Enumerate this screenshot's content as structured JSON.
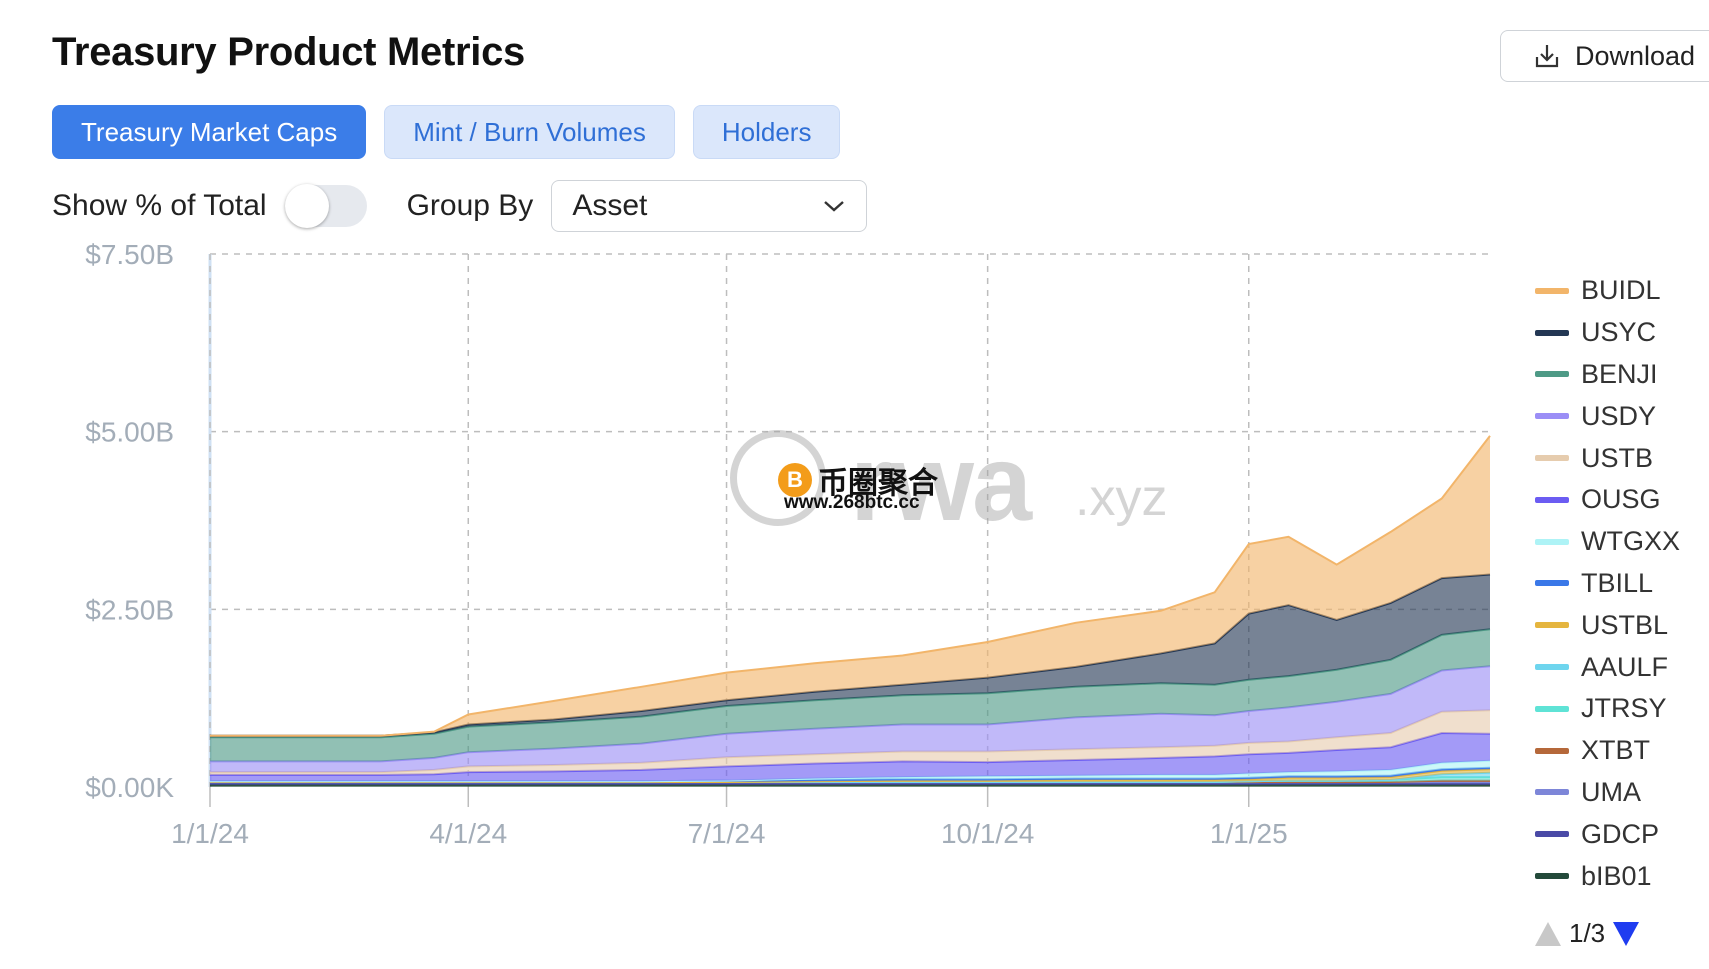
{
  "page": {
    "title": "Treasury Product Metrics",
    "download_label": "Download",
    "tabs": [
      "Treasury Market Caps",
      "Mint / Burn Volumes",
      "Holders"
    ],
    "active_tab": 0,
    "show_pct_label": "Show % of Total",
    "show_pct_enabled": false,
    "group_by_label": "Group By",
    "group_by_value": "Asset",
    "pager": "1/3",
    "watermark_main": "rwa",
    "watermark_sub": ".xyz",
    "watermark2_cn": "币圈聚合",
    "watermark2_url": "www.268btc.cc",
    "watermark2_coin": "B"
  },
  "chart_data": {
    "type": "area",
    "stacked": true,
    "x": [
      "2024-01-01",
      "2024-02-01",
      "2024-03-01",
      "2024-03-20",
      "2024-04-01",
      "2024-05-01",
      "2024-06-01",
      "2024-07-01",
      "2024-08-01",
      "2024-09-01",
      "2024-10-01",
      "2024-11-01",
      "2024-12-01",
      "2024-12-20",
      "2025-01-01",
      "2025-01-15",
      "2025-02-01",
      "2025-02-20",
      "2025-03-10",
      "2025-03-27"
    ],
    "x_ticks": [
      "1/1/24",
      "4/1/24",
      "7/1/24",
      "10/1/24",
      "1/1/25"
    ],
    "x_tick_dates": [
      "2024-01-01",
      "2024-04-01",
      "2024-07-01",
      "2024-10-01",
      "2025-01-01"
    ],
    "y_ticks": [
      "$0.00K",
      "$2.50B",
      "$5.00B",
      "$7.50B"
    ],
    "y_tick_values": [
      0,
      2.5,
      5.0,
      7.5
    ],
    "ylim": [
      0,
      7.5
    ],
    "y_unit": "$B",
    "grid": true,
    "legend_position": "right",
    "series": [
      {
        "name": "bIB01",
        "color": "#234a3a",
        "values": [
          0.03,
          0.03,
          0.03,
          0.03,
          0.03,
          0.03,
          0.03,
          0.03,
          0.03,
          0.03,
          0.03,
          0.03,
          0.03,
          0.03,
          0.03,
          0.03,
          0.03,
          0.03,
          0.03,
          0.03
        ]
      },
      {
        "name": "GDCP",
        "color": "#4a4aa6",
        "values": [
          0.02,
          0.02,
          0.02,
          0.02,
          0.02,
          0.02,
          0.02,
          0.02,
          0.02,
          0.02,
          0.02,
          0.02,
          0.02,
          0.02,
          0.02,
          0.02,
          0.02,
          0.02,
          0.02,
          0.02
        ]
      },
      {
        "name": "UMA",
        "color": "#7d86d8",
        "values": [
          0.02,
          0.02,
          0.02,
          0.02,
          0.02,
          0.02,
          0.02,
          0.02,
          0.02,
          0.02,
          0.02,
          0.02,
          0.02,
          0.02,
          0.02,
          0.02,
          0.02,
          0.02,
          0.02,
          0.02
        ]
      },
      {
        "name": "XTBT",
        "color": "#b5683a",
        "values": [
          0,
          0,
          0,
          0,
          0,
          0,
          0,
          0,
          0,
          0,
          0,
          0,
          0,
          0,
          0,
          0,
          0,
          0,
          0.02,
          0.02
        ]
      },
      {
        "name": "JTRSY",
        "color": "#5fe3d6",
        "values": [
          0,
          0,
          0,
          0,
          0,
          0,
          0,
          0,
          0,
          0,
          0,
          0,
          0,
          0,
          0.01,
          0.02,
          0.02,
          0.03,
          0.05,
          0.05
        ]
      },
      {
        "name": "AAULF",
        "color": "#6ed5ee",
        "values": [
          0,
          0,
          0,
          0,
          0,
          0,
          0,
          0,
          0,
          0,
          0,
          0,
          0,
          0,
          0,
          0,
          0,
          0,
          0.04,
          0.06
        ]
      },
      {
        "name": "USTBL",
        "color": "#e5b53e",
        "values": [
          0,
          0,
          0,
          0,
          0,
          0,
          0,
          0,
          0.01,
          0.02,
          0.02,
          0.03,
          0.03,
          0.03,
          0.03,
          0.04,
          0.04,
          0.04,
          0.05,
          0.05
        ]
      },
      {
        "name": "TBILL",
        "color": "#3a78e8",
        "values": [
          0.01,
          0.01,
          0.01,
          0.01,
          0.01,
          0.01,
          0.01,
          0.02,
          0.02,
          0.02,
          0.02,
          0.02,
          0.02,
          0.02,
          0.02,
          0.02,
          0.02,
          0.02,
          0.02,
          0.02
        ]
      },
      {
        "name": "WTGXX",
        "color": "#aef3f6",
        "values": [
          0,
          0,
          0,
          0,
          0,
          0,
          0,
          0,
          0.02,
          0.03,
          0.04,
          0.04,
          0.05,
          0.05,
          0.06,
          0.06,
          0.07,
          0.08,
          0.09,
          0.1
        ]
      },
      {
        "name": "OUSG",
        "color": "#6b5cf2",
        "values": [
          0.09,
          0.09,
          0.09,
          0.1,
          0.13,
          0.14,
          0.16,
          0.2,
          0.21,
          0.22,
          0.2,
          0.22,
          0.24,
          0.26,
          0.27,
          0.27,
          0.3,
          0.32,
          0.42,
          0.38
        ]
      },
      {
        "name": "USTB",
        "color": "#e6ccae",
        "values": [
          0.04,
          0.04,
          0.04,
          0.06,
          0.08,
          0.09,
          0.1,
          0.13,
          0.13,
          0.14,
          0.15,
          0.15,
          0.15,
          0.15,
          0.16,
          0.16,
          0.18,
          0.2,
          0.3,
          0.33
        ]
      },
      {
        "name": "USDY",
        "color": "#9b8ef6",
        "values": [
          0.15,
          0.15,
          0.15,
          0.17,
          0.2,
          0.23,
          0.27,
          0.33,
          0.36,
          0.38,
          0.38,
          0.45,
          0.47,
          0.43,
          0.45,
          0.48,
          0.5,
          0.55,
          0.58,
          0.62
        ]
      },
      {
        "name": "BENJI",
        "color": "#4e9a86",
        "values": [
          0.34,
          0.34,
          0.34,
          0.34,
          0.36,
          0.37,
          0.38,
          0.39,
          0.4,
          0.41,
          0.44,
          0.43,
          0.43,
          0.43,
          0.44,
          0.44,
          0.45,
          0.48,
          0.5,
          0.52
        ]
      },
      {
        "name": "USYC",
        "color": "#233754",
        "values": [
          0.02,
          0.02,
          0.02,
          0.02,
          0.03,
          0.04,
          0.08,
          0.08,
          0.12,
          0.15,
          0.22,
          0.28,
          0.42,
          0.58,
          0.93,
          1.0,
          0.7,
          0.8,
          0.8,
          0.77
        ]
      },
      {
        "name": "BUIDL",
        "color": "#f2b56a",
        "values": [
          0,
          0,
          0,
          0.01,
          0.14,
          0.26,
          0.34,
          0.39,
          0.4,
          0.41,
          0.5,
          0.62,
          0.6,
          0.72,
          0.98,
          0.96,
          0.78,
          1.0,
          1.12,
          1.95
        ]
      }
    ]
  }
}
